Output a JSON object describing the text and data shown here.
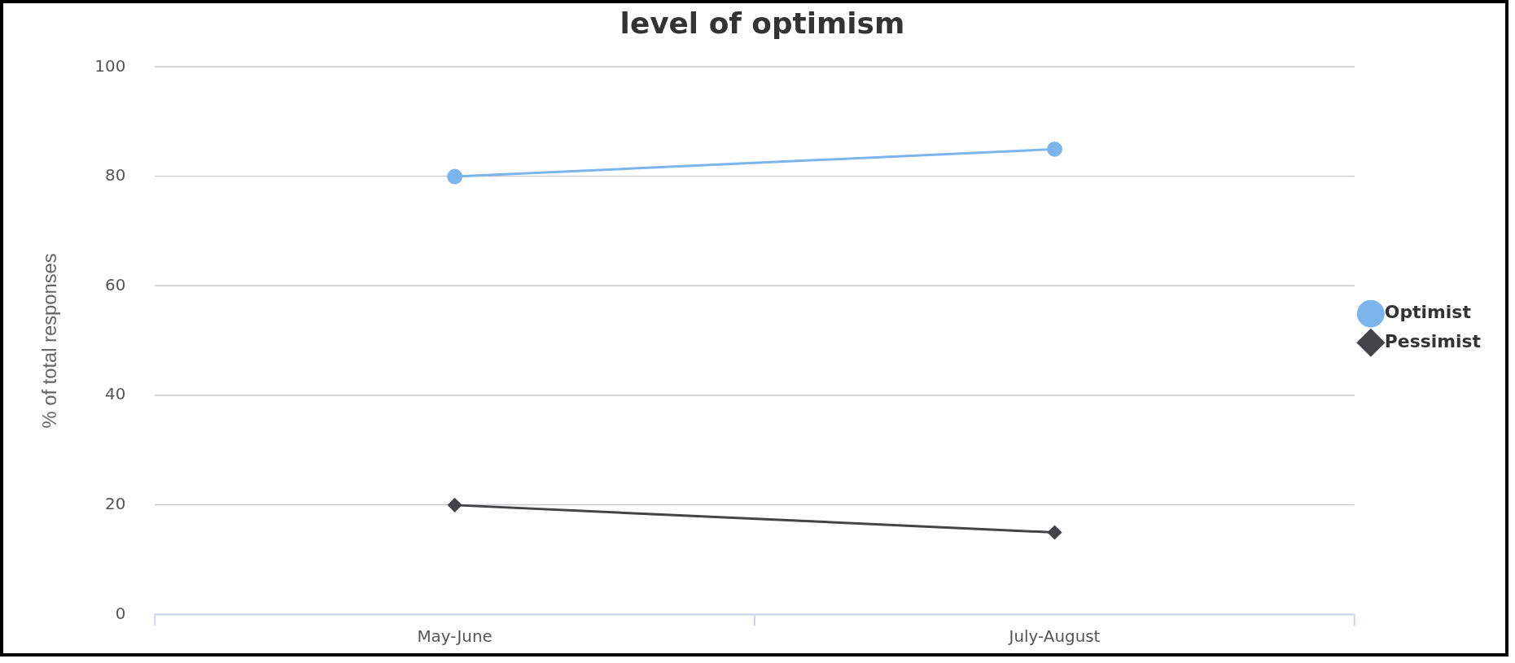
{
  "chart_data": {
    "type": "line",
    "title": "level of optimism",
    "ylabel": "% of total responses",
    "categories": [
      "May-June",
      "July-August"
    ],
    "series": [
      {
        "name": "Optimist",
        "color": "#7cb5ec",
        "values": [
          80,
          85
        ],
        "marker": "circle"
      },
      {
        "name": "Pessimist",
        "color": "#434348",
        "values": [
          20,
          15
        ],
        "marker": "diamond"
      }
    ],
    "ylim": [
      0,
      100
    ],
    "yticks": [
      0,
      20,
      40,
      60,
      80,
      100
    ],
    "grid": "y",
    "legend": "right"
  }
}
